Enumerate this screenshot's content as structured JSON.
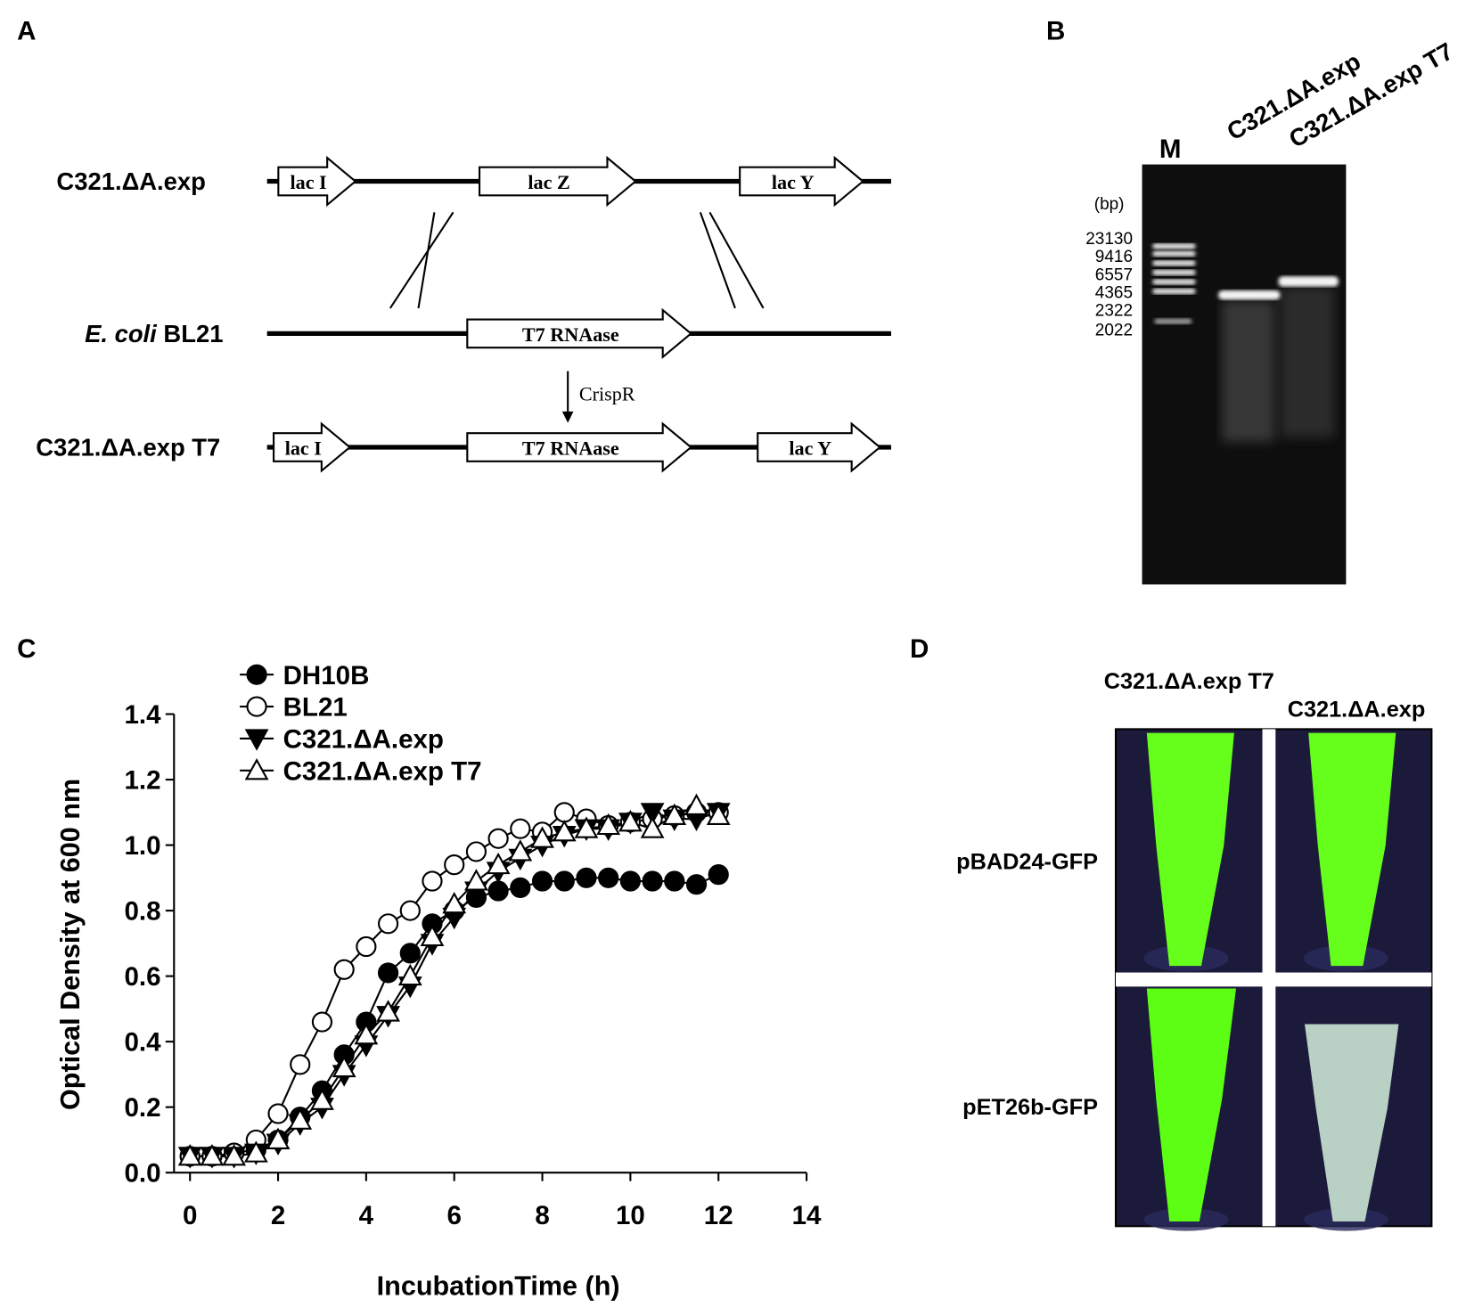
{
  "panel_labels": [
    "A",
    "B",
    "C",
    "D"
  ],
  "panel_a": {
    "strain_top": "C321.ΔA.exp",
    "species": "E. coli",
    "strain_middle": "BL21",
    "strain_bottom": "C321.ΔA.exp T7",
    "gene_lac_i": "lac I",
    "gene_lac_z": "lac Z",
    "gene_lac_y": "lac Y",
    "gene_t7": "T7 RNAase",
    "method": "CrispR"
  },
  "panel_b": {
    "marker_lane": "M",
    "lanes": [
      "C321.ΔA.exp",
      "C321.ΔA.exp T7"
    ],
    "unit": "(bp)",
    "sizes": [
      "23130",
      "9416",
      "6557",
      "4365",
      "2322",
      "2022"
    ]
  },
  "panel_d": {
    "columns": [
      "C321.ΔA.exp T7",
      "C321.ΔA.exp"
    ],
    "rows": [
      "pBAD24-GFP",
      "pET26b-GFP"
    ]
  },
  "chart_data": {
    "type": "line",
    "x_label": "IncubationTime (h)",
    "y_label": "Optical Density at 600 nm",
    "x": [
      0,
      0.5,
      1,
      1.5,
      2,
      2.5,
      3,
      3.5,
      4,
      4.5,
      5,
      5.5,
      6,
      6.5,
      7,
      7.5,
      8,
      8.5,
      9,
      9.5,
      10,
      10.5,
      11,
      11.5,
      12
    ],
    "xlim": [
      0,
      14
    ],
    "xticks": [
      0,
      2,
      4,
      6,
      8,
      10,
      12,
      14
    ],
    "ylim": [
      0,
      1.4
    ],
    "yticks": [
      {
        "value": 0,
        "label": "0.0"
      },
      0.2,
      0.4,
      0.6,
      0.8,
      {
        "value": 1,
        "label": "1.0"
      },
      1.2,
      1.4
    ],
    "grid": false,
    "legend": "upper left",
    "series": [
      {
        "name": "DH10B",
        "color": "#000000",
        "marker": "circle",
        "filled": true,
        "values": [
          0.05,
          0.05,
          0.06,
          0.07,
          0.1,
          0.17,
          0.25,
          0.36,
          0.46,
          0.61,
          0.67,
          0.76,
          0.8,
          0.84,
          0.86,
          0.87,
          0.89,
          0.89,
          0.9,
          0.9,
          0.89,
          0.89,
          0.89,
          0.88,
          0.91
        ]
      },
      {
        "name": "BL21",
        "color": "#000000",
        "marker": "circle",
        "filled": false,
        "values": [
          0.05,
          0.05,
          0.06,
          0.1,
          0.18,
          0.33,
          0.46,
          0.62,
          0.69,
          0.76,
          0.8,
          0.89,
          0.94,
          0.98,
          1.02,
          1.05,
          1.04,
          1.1,
          1.08,
          1.06,
          1.07,
          1.08,
          1.09,
          1.1,
          1.1
        ]
      },
      {
        "name": "C321.ΔA.exp",
        "color": "#000000",
        "marker": "triangle-down",
        "filled": true,
        "values": [
          0.05,
          0.05,
          0.05,
          0.06,
          0.09,
          0.15,
          0.2,
          0.3,
          0.39,
          0.48,
          0.57,
          0.7,
          0.78,
          0.86,
          0.92,
          0.96,
          1.0,
          1.03,
          1.05,
          1.05,
          1.07,
          1.1,
          1.08,
          1.08,
          1.1
        ]
      },
      {
        "name": "C321.ΔA.exp T7",
        "color": "#000000",
        "marker": "triangle-up",
        "filled": false,
        "values": [
          0.05,
          0.05,
          0.05,
          0.06,
          0.1,
          0.16,
          0.22,
          0.32,
          0.42,
          0.49,
          0.6,
          0.72,
          0.82,
          0.89,
          0.94,
          0.98,
          1.02,
          1.04,
          1.05,
          1.06,
          1.07,
          1.05,
          1.09,
          1.12,
          1.09
        ]
      }
    ]
  }
}
